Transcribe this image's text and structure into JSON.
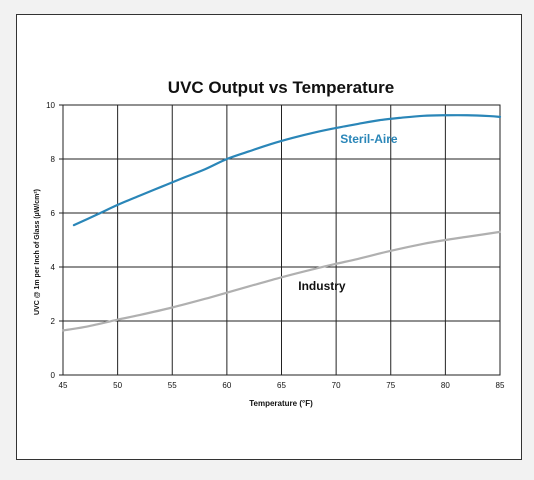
{
  "chart_data": {
    "type": "line",
    "title": "UVC Output vs Temperature",
    "xlabel": "Temperature (°F)",
    "ylabel": "UVC @ 1m per Inch of Glass (µW/cm²)",
    "xlim": [
      45,
      85
    ],
    "ylim": [
      0,
      10
    ],
    "x_ticks": [
      45,
      50,
      55,
      60,
      65,
      70,
      75,
      80,
      85
    ],
    "y_ticks": [
      0,
      2,
      4,
      6,
      8,
      10
    ],
    "grid": true,
    "legend": "none",
    "series": [
      {
        "name": "Steril-Aire",
        "color": "#2a86b8",
        "x": [
          46,
          48,
          50,
          52,
          54,
          56,
          58,
          60,
          62,
          64,
          66,
          68,
          70,
          72,
          74,
          76,
          78,
          80,
          82,
          84,
          85
        ],
        "y": [
          5.55,
          5.92,
          6.3,
          6.64,
          6.97,
          7.3,
          7.62,
          8.0,
          8.28,
          8.55,
          8.78,
          8.98,
          9.15,
          9.3,
          9.44,
          9.53,
          9.6,
          9.62,
          9.62,
          9.59,
          9.56
        ]
      },
      {
        "name": "Industry",
        "color": "#b0b0b0",
        "x": [
          45,
          47,
          50,
          52,
          55,
          58,
          60,
          62,
          65,
          68,
          70,
          72,
          75,
          78,
          80,
          82,
          85
        ],
        "y": [
          1.65,
          1.78,
          2.05,
          2.22,
          2.5,
          2.82,
          3.05,
          3.28,
          3.62,
          3.93,
          4.12,
          4.3,
          4.6,
          4.86,
          5.0,
          5.12,
          5.3
        ]
      }
    ],
    "annotations": [
      {
        "text": "Steril-Aire",
        "x": 73,
        "y": 8.75,
        "color": "#2a86b8"
      },
      {
        "text": "Industry",
        "x": 68.7,
        "y": 3.3,
        "color": "#111111"
      }
    ]
  }
}
